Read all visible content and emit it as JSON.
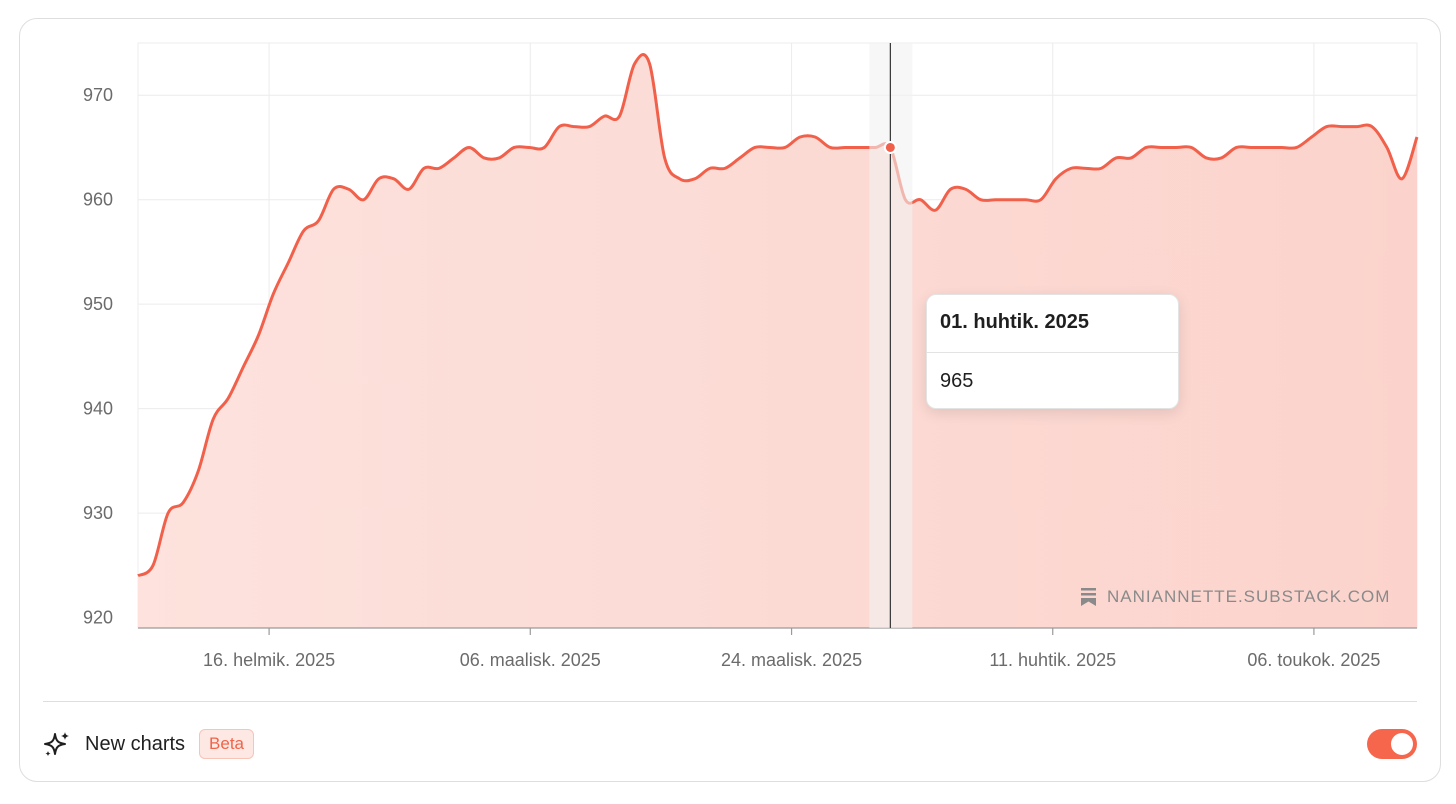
{
  "chart_data": {
    "type": "area",
    "y_ticks": [
      920,
      930,
      940,
      950,
      960,
      970
    ],
    "ylim": [
      919,
      975
    ],
    "x_ticks": [
      "16. helmik. 2025",
      "06. maalisk. 2025",
      "24. maalisk. 2025",
      "11. huhtik. 2025",
      "06. toukok. 2025"
    ],
    "series": [
      {
        "color": "#f1604a",
        "values": [
          924,
          925,
          930,
          931,
          934,
          939,
          941,
          944,
          947,
          951,
          954,
          957,
          958,
          961,
          961,
          960,
          962,
          962,
          961,
          963,
          963,
          964,
          965,
          964,
          964,
          965,
          965,
          965,
          967,
          967,
          967,
          968,
          968,
          973,
          973,
          964,
          962,
          962,
          963,
          963,
          964,
          965,
          965,
          965,
          966,
          966,
          965,
          965,
          965,
          965,
          965,
          960,
          960,
          959,
          961,
          961,
          960,
          960,
          960,
          960,
          960,
          962,
          963,
          963,
          963,
          964,
          964,
          965,
          965,
          965,
          965,
          964,
          964,
          965,
          965,
          965,
          965,
          965,
          966,
          967,
          967,
          967,
          967,
          965,
          962,
          966
        ]
      }
    ],
    "grid": true,
    "highlight": {
      "index": 50,
      "date": "01. huhtik. 2025",
      "value": "965"
    }
  },
  "watermark": {
    "text": "NANIANNETTE.SUBSTACK.COM",
    "icon": "substack-icon"
  },
  "footer": {
    "icon": "sparkles-icon",
    "label": "New charts",
    "badge": "Beta",
    "toggle_on": true,
    "accent": "#f5664c"
  }
}
